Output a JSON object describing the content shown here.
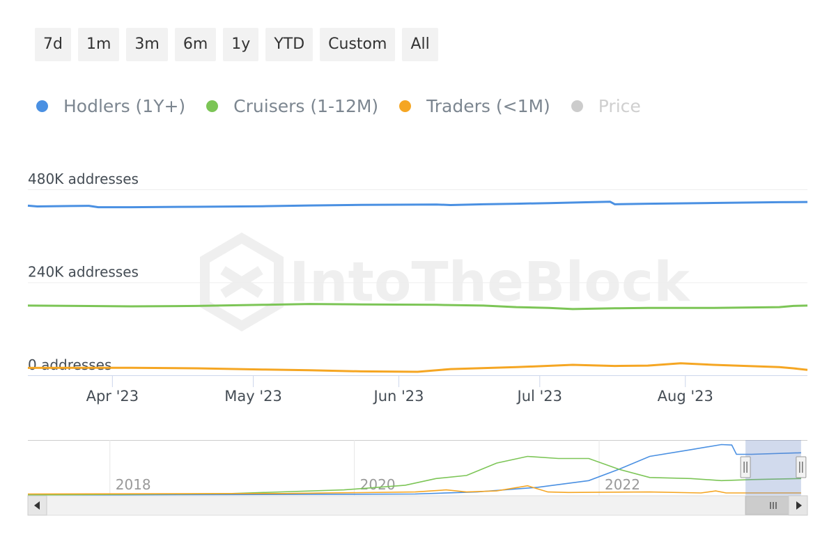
{
  "range_selector": {
    "buttons": [
      "7d",
      "1m",
      "3m",
      "6m",
      "1y",
      "YTD",
      "Custom",
      "All"
    ]
  },
  "legend": {
    "items": [
      {
        "label": "Hodlers (1Y+)",
        "color": "#4a90e2",
        "enabled": true
      },
      {
        "label": "Cruisers (1-12M)",
        "color": "#7cc556",
        "enabled": true
      },
      {
        "label": "Traders (<1M)",
        "color": "#f5a623",
        "enabled": true
      },
      {
        "label": "Price",
        "color": "#cccccc",
        "enabled": false
      }
    ]
  },
  "watermark": "IntoTheBlock",
  "chart_data": {
    "type": "line",
    "y_ticks": [
      {
        "value": 0,
        "label": "0 addresses"
      },
      {
        "value": 240000,
        "label": "240K addresses"
      },
      {
        "value": 480000,
        "label": "480K addresses"
      }
    ],
    "ylim": [
      0,
      480000
    ],
    "x_ticks": [
      {
        "date": "2023-04-01",
        "label": "Apr '23"
      },
      {
        "date": "2023-05-01",
        "label": "May '23"
      },
      {
        "date": "2023-06-01",
        "label": "Jun '23"
      },
      {
        "date": "2023-07-01",
        "label": "Jul '23"
      },
      {
        "date": "2023-08-01",
        "label": "Aug '23"
      }
    ],
    "xlim": [
      "2023-03-14",
      "2023-08-27"
    ],
    "series": [
      {
        "name": "Hodlers (1Y+)",
        "color": "#4a90e2",
        "x": [
          "2023-03-14",
          "2023-03-16",
          "2023-03-23",
          "2023-03-27",
          "2023-03-29",
          "2023-04-05",
          "2023-04-19",
          "2023-05-03",
          "2023-05-13",
          "2023-05-24",
          "2023-06-09",
          "2023-06-12",
          "2023-06-19",
          "2023-06-26",
          "2023-07-03",
          "2023-07-10",
          "2023-07-16",
          "2023-07-17",
          "2023-07-24",
          "2023-08-07",
          "2023-08-21",
          "2023-08-27"
        ],
        "y": [
          438000,
          436000,
          437000,
          437500,
          434000,
          434000,
          435000,
          436500,
          438500,
          440000,
          441000,
          439500,
          441500,
          443000,
          444500,
          446500,
          448000,
          441500,
          443000,
          445000,
          447000,
          447500
        ]
      },
      {
        "name": "Cruisers (1-12M)",
        "color": "#7cc556",
        "x": [
          "2023-03-14",
          "2023-04-05",
          "2023-04-19",
          "2023-05-03",
          "2023-05-13",
          "2023-05-24",
          "2023-06-09",
          "2023-06-19",
          "2023-06-26",
          "2023-07-03",
          "2023-07-08",
          "2023-07-17",
          "2023-07-24",
          "2023-08-07",
          "2023-08-21",
          "2023-08-24",
          "2023-08-27"
        ],
        "y": [
          180000,
          178000,
          179000,
          182000,
          184000,
          183000,
          182000,
          180000,
          176000,
          174000,
          171000,
          173000,
          174000,
          174000,
          176000,
          179000,
          180000
        ]
      },
      {
        "name": "Traders (<1M)",
        "color": "#f5a623",
        "x": [
          "2023-03-14",
          "2023-04-05",
          "2023-04-19",
          "2023-05-03",
          "2023-05-13",
          "2023-05-24",
          "2023-06-05",
          "2023-06-12",
          "2023-06-26",
          "2023-07-08",
          "2023-07-17",
          "2023-07-24",
          "2023-07-31",
          "2023-08-07",
          "2023-08-21",
          "2023-08-24",
          "2023-08-27"
        ],
        "y": [
          19000,
          19500,
          18000,
          15000,
          13000,
          10000,
          9000,
          16000,
          21000,
          27000,
          24000,
          25000,
          31000,
          27000,
          21000,
          18000,
          14000
        ]
      }
    ],
    "navigator": {
      "x_ticks": [
        {
          "date": "2018-01-01",
          "label": "2018"
        },
        {
          "date": "2020-01-01",
          "label": "2020"
        },
        {
          "date": "2022-01-01",
          "label": "2022"
        }
      ],
      "xlim": [
        "2017-05-01",
        "2023-09-15"
      ],
      "selected_range": [
        "2023-03-14",
        "2023-08-27"
      ],
      "series": [
        {
          "name": "Hodlers (1Y+)",
          "x": [
            "2017-05-01",
            "2019-01-01",
            "2020-07-01",
            "2021-01-01",
            "2021-07-01",
            "2021-12-01",
            "2022-03-01",
            "2022-06-01",
            "2022-10-01",
            "2023-01-01",
            "2023-02-01",
            "2023-02-15",
            "2023-04-01",
            "2023-08-27"
          ],
          "y": [
            0.0,
            0.01,
            0.02,
            0.06,
            0.15,
            0.28,
            0.5,
            0.75,
            0.88,
            0.98,
            0.97,
            0.79,
            0.79,
            0.82
          ]
        },
        {
          "name": "Cruisers (1-12M)",
          "x": [
            "2017-05-01",
            "2019-01-01",
            "2019-12-01",
            "2020-06-01",
            "2020-09-01",
            "2020-12-01",
            "2021-03-01",
            "2021-06-01",
            "2021-09-01",
            "2021-12-01",
            "2022-03-01",
            "2022-06-01",
            "2022-10-01",
            "2023-01-01",
            "2023-04-01",
            "2023-08-27"
          ],
          "y": [
            0.0,
            0.03,
            0.1,
            0.19,
            0.32,
            0.38,
            0.62,
            0.75,
            0.71,
            0.71,
            0.5,
            0.34,
            0.32,
            0.28,
            0.3,
            0.32
          ]
        },
        {
          "name": "Traders (<1M)",
          "x": [
            "2017-05-01",
            "2019-06-01",
            "2020-07-01",
            "2020-10-01",
            "2020-12-01",
            "2021-03-01",
            "2021-06-01",
            "2021-08-01",
            "2021-10-01",
            "2022-06-01",
            "2022-11-01",
            "2022-12-15",
            "2023-01-15",
            "2023-08-27"
          ],
          "y": [
            0.02,
            0.03,
            0.06,
            0.1,
            0.06,
            0.08,
            0.18,
            0.06,
            0.05,
            0.06,
            0.04,
            0.08,
            0.04,
            0.04
          ]
        }
      ]
    }
  }
}
